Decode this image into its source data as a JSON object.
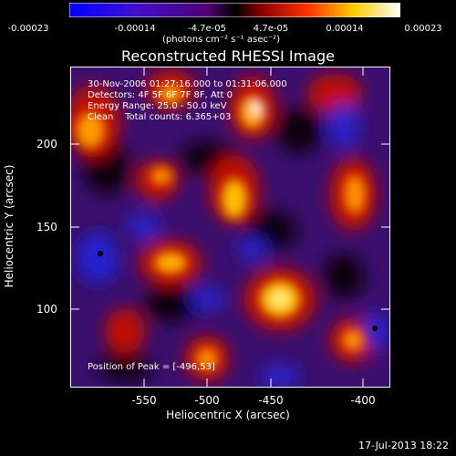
{
  "colorbar": {
    "ticks": [
      "-0.00023",
      "-0.00014",
      "-4.7e-05",
      "4.7e-05",
      "0.00014",
      "0.00023"
    ],
    "units": "(photons cm⁻² s⁻¹ asec⁻²)"
  },
  "title": "Reconstructed RHESSI Image",
  "info": {
    "time": "30-Nov-2006 01:27:16.000 to 01:31:06.000",
    "detectors": "Detectors: 4F 5F 6F 7F 8F, Att 0",
    "energy": "Energy Range: 25.0 - 50.0 keV",
    "clean": "Clean    Total counts: 6.365+03",
    "peak": "Position of Peak = [-496,53]"
  },
  "axes": {
    "xlabel": "Heliocentric X (arcsec)",
    "ylabel": "Heliocentric Y (arcsec)",
    "xticks": [
      "-550",
      "-500",
      "-450",
      "-400"
    ],
    "yticks": [
      "200",
      "150",
      "100"
    ]
  },
  "footer": "17-Jul-2013 18:22",
  "colors": {
    "bg": "#000000",
    "frame": "#ffffff"
  }
}
